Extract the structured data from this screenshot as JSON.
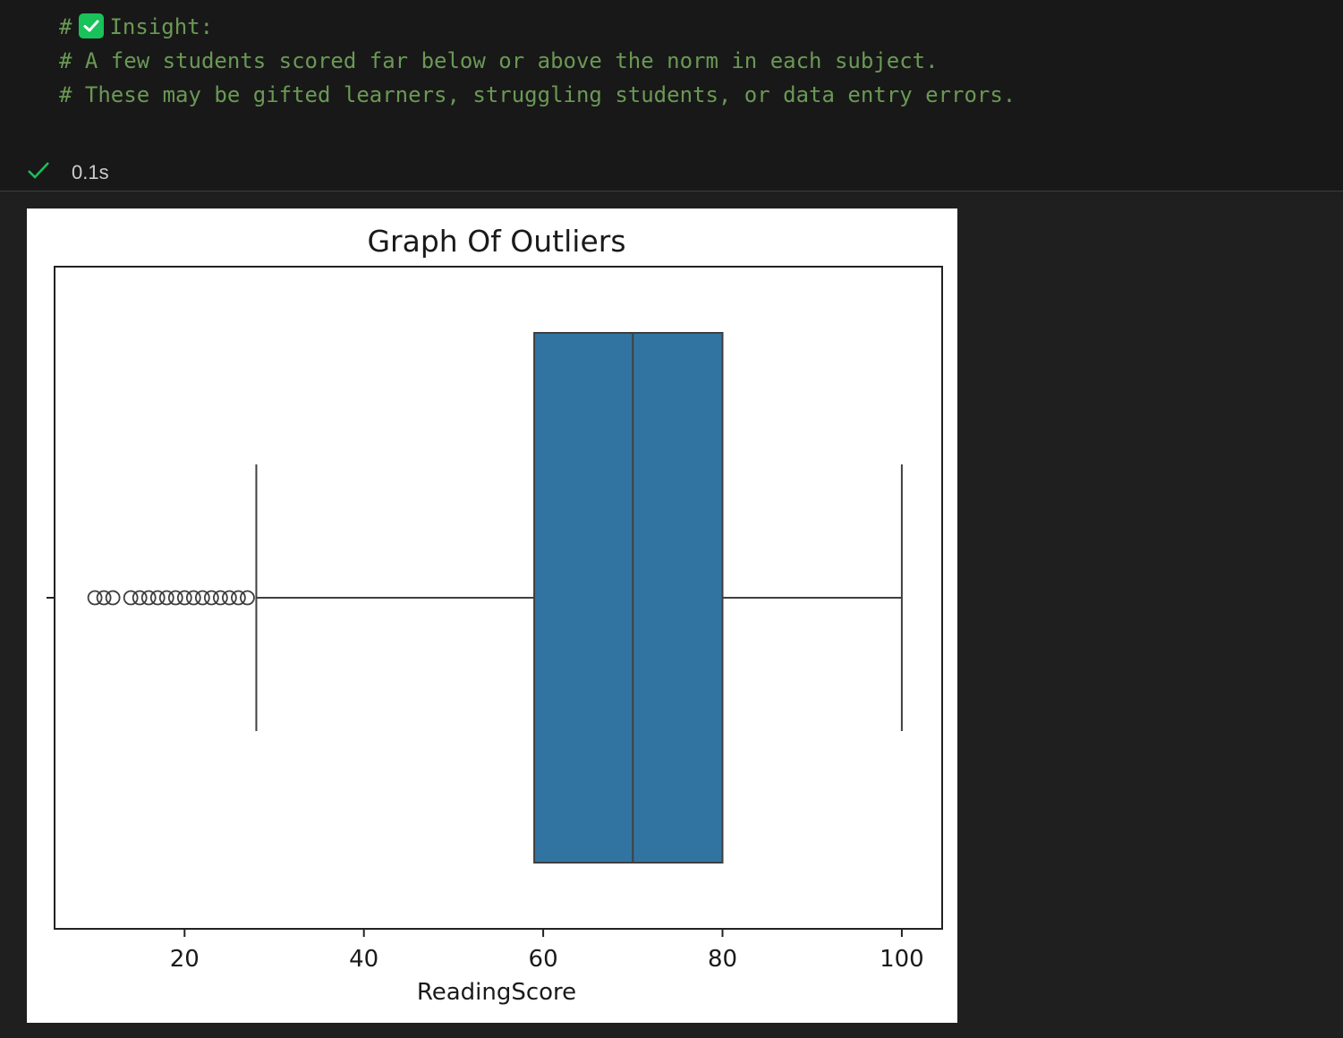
{
  "code": {
    "line1_prefix": "#",
    "line1_text": "Insight:",
    "line2": "# A few students scored far below or above the norm in each subject.",
    "line3": "# These may be gifted learners, struggling students, or data entry errors.",
    "emoji_icon": "white-check-mark-button-icon"
  },
  "cell_status": {
    "icon": "checkmark-icon",
    "time": "0.1s"
  },
  "colors": {
    "box_fill": "#3274a1",
    "line": "#3f3f3f",
    "comment": "#6a9955",
    "success": "#19c25a"
  },
  "chart_data": {
    "type": "boxplot",
    "orientation": "horizontal",
    "title": "Graph Of Outliers",
    "xlabel": "ReadingScore",
    "ylabel": "",
    "xlim": [
      5.5,
      104.5
    ],
    "xticks": [
      20,
      40,
      60,
      80,
      100
    ],
    "grid": false,
    "box": {
      "whisker_low": 28,
      "q1": 59,
      "median": 70,
      "q3": 80,
      "whisker_high": 100
    },
    "outliers": [
      10,
      11,
      12,
      14,
      15,
      16,
      17,
      18,
      19,
      20,
      21,
      22,
      23,
      24,
      25,
      26,
      27
    ]
  }
}
